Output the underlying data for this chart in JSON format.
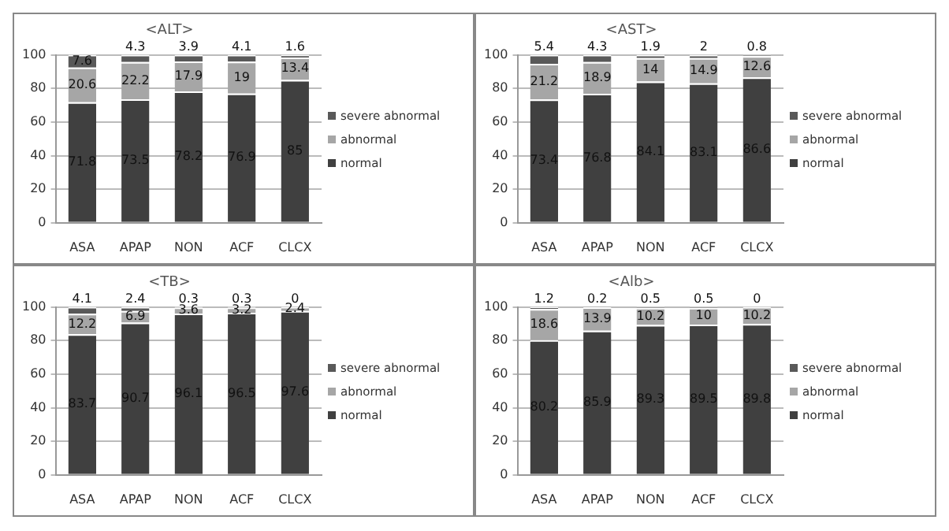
{
  "chart_data": [
    {
      "type": "bar",
      "title": "<ALT>",
      "stacked": true,
      "categories": [
        "ASA",
        "APAP",
        "NON",
        "ACF",
        "CLCX"
      ],
      "series": [
        {
          "name": "normal",
          "color": "#404040",
          "values": [
            71.8,
            73.5,
            78.2,
            76.9,
            85
          ]
        },
        {
          "name": "abnormal",
          "color": "#a6a6a6",
          "values": [
            20.6,
            22.2,
            17.9,
            19,
            13.4
          ]
        },
        {
          "name": "severe abnormal",
          "color": "#595959",
          "values": [
            7.6,
            4.3,
            3.9,
            4.1,
            1.6
          ]
        }
      ],
      "ylim": [
        0,
        100
      ],
      "yticks": [
        0,
        20,
        40,
        60,
        80,
        100
      ],
      "grid": "y",
      "legend": "right",
      "data_labels": true
    },
    {
      "type": "bar",
      "title": "<AST>",
      "stacked": true,
      "categories": [
        "ASA",
        "APAP",
        "NON",
        "ACF",
        "CLCX"
      ],
      "series": [
        {
          "name": "normal",
          "color": "#404040",
          "values": [
            73.4,
            76.8,
            84.1,
            83.1,
            86.6
          ]
        },
        {
          "name": "abnormal",
          "color": "#a6a6a6",
          "values": [
            21.2,
            18.9,
            14,
            14.9,
            12.6
          ]
        },
        {
          "name": "severe abnormal",
          "color": "#595959",
          "values": [
            5.4,
            4.3,
            1.9,
            2,
            0.8
          ]
        }
      ],
      "ylim": [
        0,
        100
      ],
      "yticks": [
        0,
        20,
        40,
        60,
        80,
        100
      ],
      "grid": "y",
      "legend": "right",
      "data_labels": true
    },
    {
      "type": "bar",
      "title": "<TB>",
      "stacked": true,
      "categories": [
        "ASA",
        "APAP",
        "NON",
        "ACF",
        "CLCX"
      ],
      "series": [
        {
          "name": "normal",
          "color": "#404040",
          "values": [
            83.7,
            90.7,
            96.1,
            96.5,
            97.6
          ]
        },
        {
          "name": "abnormal",
          "color": "#a6a6a6",
          "values": [
            12.2,
            6.9,
            3.6,
            3.2,
            2.4
          ]
        },
        {
          "name": "severe abnormal",
          "color": "#595959",
          "values": [
            4.1,
            2.4,
            0.3,
            0.3,
            0
          ]
        }
      ],
      "ylim": [
        0,
        100
      ],
      "yticks": [
        0,
        20,
        40,
        60,
        80,
        100
      ],
      "grid": "y",
      "legend": "right",
      "data_labels": true
    },
    {
      "type": "bar",
      "title": "<Alb>",
      "stacked": true,
      "categories": [
        "ASA",
        "APAP",
        "NON",
        "ACF",
        "CLCX"
      ],
      "series": [
        {
          "name": "normal",
          "color": "#404040",
          "values": [
            80.2,
            85.9,
            89.3,
            89.5,
            89.8
          ]
        },
        {
          "name": "abnormal",
          "color": "#a6a6a6",
          "values": [
            18.6,
            13.9,
            10.2,
            10,
            10.2
          ]
        },
        {
          "name": "severe abnormal",
          "color": "#595959",
          "values": [
            1.2,
            0.2,
            0.5,
            0.5,
            0
          ]
        }
      ],
      "ylim": [
        0,
        100
      ],
      "yticks": [
        0,
        20,
        40,
        60,
        80,
        100
      ],
      "grid": "y",
      "legend": "right",
      "data_labels": true
    }
  ]
}
